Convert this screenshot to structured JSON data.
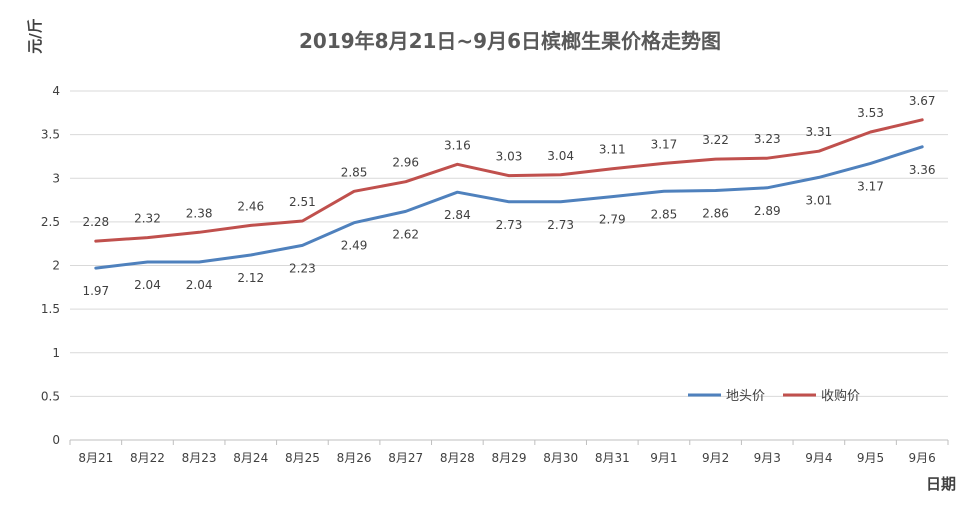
{
  "chart_data": {
    "type": "line",
    "title": "2019年8月21日~9月6日槟榔生果价格走势图",
    "ylabel": "元/斤",
    "xlabel": "日期",
    "ylim": [
      0,
      4
    ],
    "yticks": [
      "0",
      "0.5",
      "1",
      "1.5",
      "2",
      "2.5",
      "3",
      "3.5",
      "4"
    ],
    "grid": true,
    "legend_position": "bottom-right",
    "categories": [
      "8月21",
      "8月22",
      "8月23",
      "8月24",
      "8月25",
      "8月26",
      "8月27",
      "8月28",
      "8月29",
      "8月30",
      "8月31",
      "9月1",
      "9月2",
      "9月3",
      "9月4",
      "9月5",
      "9月6"
    ],
    "series": [
      {
        "name": "地头价",
        "color": "#4f81bd",
        "values": [
          1.97,
          2.04,
          2.04,
          2.12,
          2.23,
          2.49,
          2.62,
          2.84,
          2.73,
          2.73,
          2.79,
          2.85,
          2.86,
          2.89,
          3.01,
          3.17,
          3.36
        ],
        "labels": [
          "1.97",
          "2.04",
          "2.04",
          "2.12",
          "2.23",
          "2.49",
          "2.62",
          "2.84",
          "2.73",
          "2.73",
          "2.79",
          "2.85",
          "2.86",
          "2.89",
          "3.01",
          "3.17",
          "3.36"
        ],
        "label_side": "below"
      },
      {
        "name": "收购价",
        "color": "#c0504d",
        "values": [
          2.28,
          2.32,
          2.38,
          2.46,
          2.51,
          2.85,
          2.96,
          3.16,
          3.03,
          3.04,
          3.11,
          3.17,
          3.22,
          3.23,
          3.31,
          3.53,
          3.67
        ],
        "labels": [
          "2.28",
          "2.32",
          "2.38",
          "2.46",
          "2.51",
          "2.85",
          "2.96",
          "3.16",
          "3.03",
          "3.04",
          "3.11",
          "3.17",
          "3.22",
          "3.23",
          "3.31",
          "3.53",
          "3.67"
        ],
        "label_side": "above"
      }
    ]
  }
}
